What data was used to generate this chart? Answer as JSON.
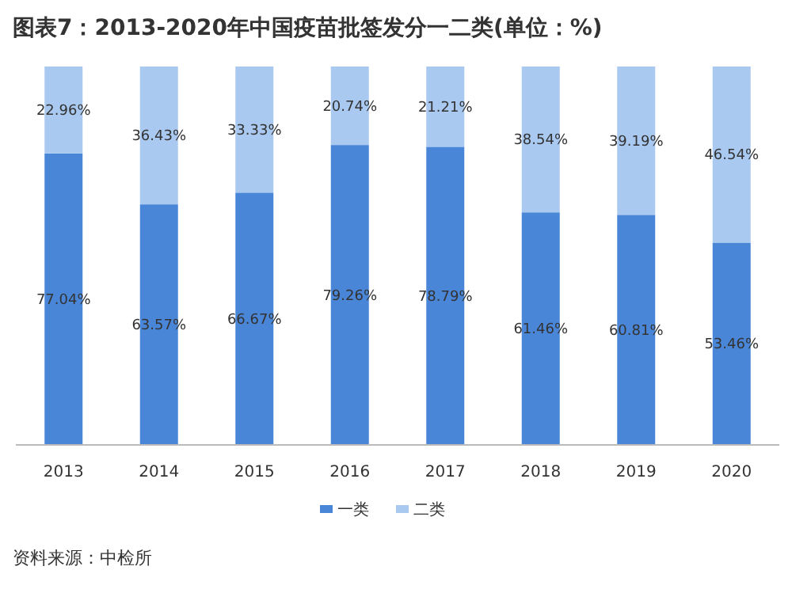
{
  "chart_data": {
    "type": "bar",
    "stacked": true,
    "legend": "bottom",
    "title": "图表7：2013-2020年中国疫苗批签发分一二类(单位：%)",
    "categories": [
      "2013",
      "2014",
      "2015",
      "2016",
      "2017",
      "2018",
      "2019",
      "2020"
    ],
    "series": [
      {
        "name": "一类",
        "color": "#4a86d8",
        "values": [
          77.04,
          63.57,
          66.67,
          79.26,
          78.79,
          61.46,
          60.81,
          53.46
        ],
        "value_labels": [
          "77.04%",
          "63.57%",
          "66.67%",
          "79.26%",
          "78.79%",
          "61.46%",
          "60.81%",
          "53.46%"
        ]
      },
      {
        "name": "二类",
        "color": "#a9c9f1",
        "values": [
          22.96,
          36.43,
          33.33,
          20.74,
          21.21,
          38.54,
          39.19,
          46.54
        ],
        "value_labels": [
          "22.96%",
          "36.43%",
          "33.33%",
          "20.74%",
          "21.21%",
          "38.54%",
          "39.19%",
          "46.54%"
        ]
      }
    ],
    "annotations": [
      "资料来源：中检所"
    ]
  }
}
